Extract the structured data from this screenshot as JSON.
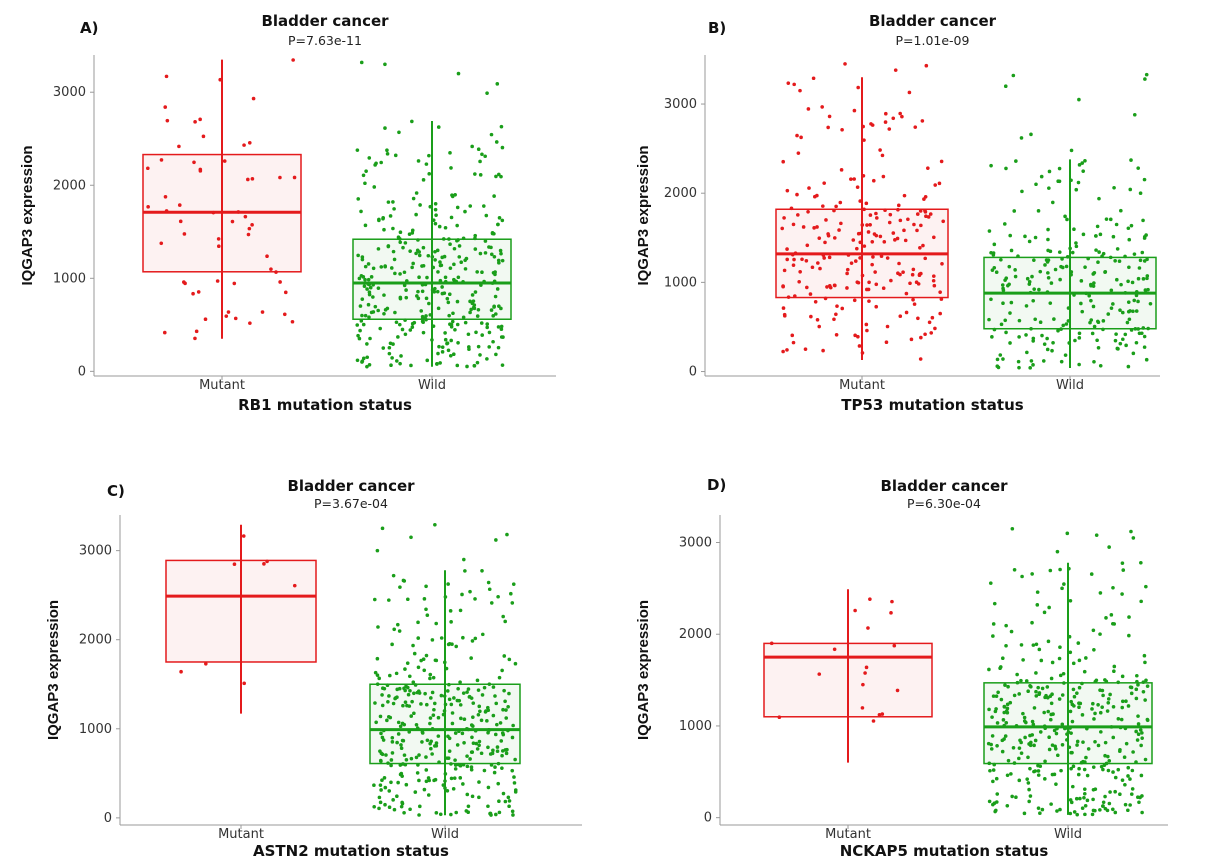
{
  "chart_data": [
    {
      "panel_label": "A)",
      "type": "box",
      "title": "Bladder cancer",
      "subtitle": "P=7.63e-11",
      "xlabel": "RB1 mutation status",
      "ylabel": "IQGAP3 expression",
      "categories": [
        "Mutant",
        "Wild"
      ],
      "yticks": [
        "0",
        "1000",
        "2000",
        "3000"
      ],
      "ylim": [
        -50,
        3400
      ],
      "colors": [
        "#e41a1c",
        "#1a9e1a"
      ],
      "boxes": [
        {
          "category": "Mutant",
          "q1": 1070,
          "median": 1710,
          "q3": 2330,
          "whisker_low": 350,
          "whisker_high": 3350,
          "n": 60
        },
        {
          "category": "Wild",
          "q1": 560,
          "median": 950,
          "q3": 1420,
          "whisker_low": 50,
          "whisker_high": 2690,
          "n": 360
        }
      ],
      "outliers": [
        {
          "category": "Wild",
          "values": [
            3300,
            3320,
            3090,
            2990,
            3200
          ]
        }
      ]
    },
    {
      "panel_label": "B)",
      "type": "box",
      "title": "Bladder cancer",
      "subtitle": "P=1.01e-09",
      "xlabel": "TP53 mutation status",
      "ylabel": "IQGAP3 expression",
      "categories": [
        "Mutant",
        "Wild"
      ],
      "yticks": [
        "0",
        "1000",
        "2000",
        "3000"
      ],
      "ylim": [
        -50,
        3550
      ],
      "colors": [
        "#e41a1c",
        "#1a9e1a"
      ],
      "boxes": [
        {
          "category": "Mutant",
          "q1": 830,
          "median": 1320,
          "q3": 1820,
          "whisker_low": 130,
          "whisker_high": 3300,
          "n": 230
        },
        {
          "category": "Wild",
          "q1": 480,
          "median": 880,
          "q3": 1280,
          "whisker_low": 40,
          "whisker_high": 2380,
          "n": 260
        }
      ],
      "outliers": [
        {
          "category": "Mutant",
          "values": [
            3450,
            3430,
            3380,
            3150,
            3130
          ]
        },
        {
          "category": "Wild",
          "values": [
            3330,
            3320,
            3280,
            3200,
            3050,
            2880,
            2660,
            2620,
            2480,
            2360
          ]
        }
      ]
    },
    {
      "panel_label": "C)",
      "type": "box",
      "title": "Bladder cancer",
      "subtitle": "P=3.67e-04",
      "xlabel": "ASTN2 mutation status",
      "ylabel": "IQGAP3 expression",
      "categories": [
        "Mutant",
        "Wild"
      ],
      "yticks": [
        "0",
        "1000",
        "2000",
        "3000"
      ],
      "ylim": [
        -80,
        3400
      ],
      "colors": [
        "#e41a1c",
        "#1a9e1a"
      ],
      "boxes": [
        {
          "category": "Mutant",
          "q1": 1750,
          "median": 2490,
          "q3": 2890,
          "whisker_low": 1170,
          "whisker_high": 3290,
          "n": 8
        },
        {
          "category": "Wild",
          "q1": 610,
          "median": 990,
          "q3": 1500,
          "whisker_low": 30,
          "whisker_high": 2780,
          "n": 380
        }
      ],
      "outliers": [
        {
          "category": "Wild",
          "values": [
            3290,
            3250,
            3180,
            3150,
            3120,
            3000,
            2900
          ]
        }
      ]
    },
    {
      "panel_label": "D)",
      "type": "box",
      "title": "Bladder cancer",
      "subtitle": "P=6.30e-04",
      "xlabel": "NCKAP5 mutation status",
      "ylabel": "IQGAP3 expression",
      "categories": [
        "Mutant",
        "Wild"
      ],
      "yticks": [
        "0",
        "1000",
        "2000",
        "3000"
      ],
      "ylim": [
        -80,
        3300
      ],
      "colors": [
        "#e41a1c",
        "#1a9e1a"
      ],
      "boxes": [
        {
          "category": "Mutant",
          "q1": 1100,
          "median": 1750,
          "q3": 1900,
          "whisker_low": 600,
          "whisker_high": 2490,
          "n": 18
        },
        {
          "category": "Wild",
          "q1": 590,
          "median": 990,
          "q3": 1470,
          "whisker_low": 30,
          "whisker_high": 2780,
          "n": 380
        }
      ],
      "outliers": [
        {
          "category": "Wild",
          "values": [
            3150,
            3120,
            3100,
            3080,
            3050,
            2950,
            2900
          ]
        }
      ]
    }
  ]
}
